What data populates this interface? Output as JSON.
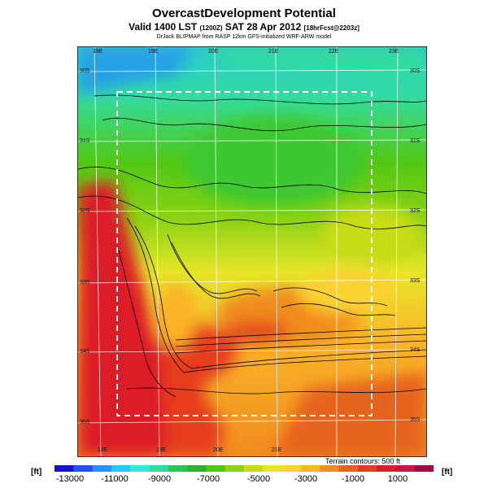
{
  "header": {
    "title": "OvercastDevelopment Potential",
    "subtitle_main": "Valid 1400 LST",
    "subtitle_z": "(1200Z)",
    "subtitle_date": "SAT 28 Apr 2012",
    "subtitle_fcst": "[18hrFcst@2203z]",
    "credit": "DrJack BLIPMAP from RASP 12km GFS-initialized WRF-ARW model"
  },
  "map": {
    "lon_labels_top": [
      "18E",
      "19E",
      "20E",
      "21E",
      "22E",
      "23E"
    ],
    "lon_labels_bottom": [
      "18E",
      "19E",
      "20E",
      "21E"
    ],
    "lat_labels_left": [
      "30S",
      "31S",
      "32S",
      "33S",
      "34S",
      "35S"
    ],
    "lat_labels_right": [
      "30S",
      "31S",
      "32S",
      "33S",
      "34S",
      "35S"
    ],
    "terrain_note": "Terrain contours: 500 ft"
  },
  "colorbar": {
    "unit_left": "[ft]",
    "unit_right": "[ft]",
    "ticks": [
      "-13000",
      "-11000",
      "-9000",
      "-7000",
      "-5000",
      "-3000",
      "-1000",
      "1000"
    ],
    "colors": [
      "#1414c8",
      "#1e50ff",
      "#2890ff",
      "#28c8ff",
      "#32e6dc",
      "#32dca0",
      "#28c850",
      "#28b428",
      "#50c814",
      "#8cd214",
      "#c8dc14",
      "#e6e628",
      "#fad232",
      "#fab428",
      "#f08c1e",
      "#e6641e",
      "#e63c1e",
      "#dc1e28",
      "#c81446",
      "#a00a4b"
    ]
  }
}
